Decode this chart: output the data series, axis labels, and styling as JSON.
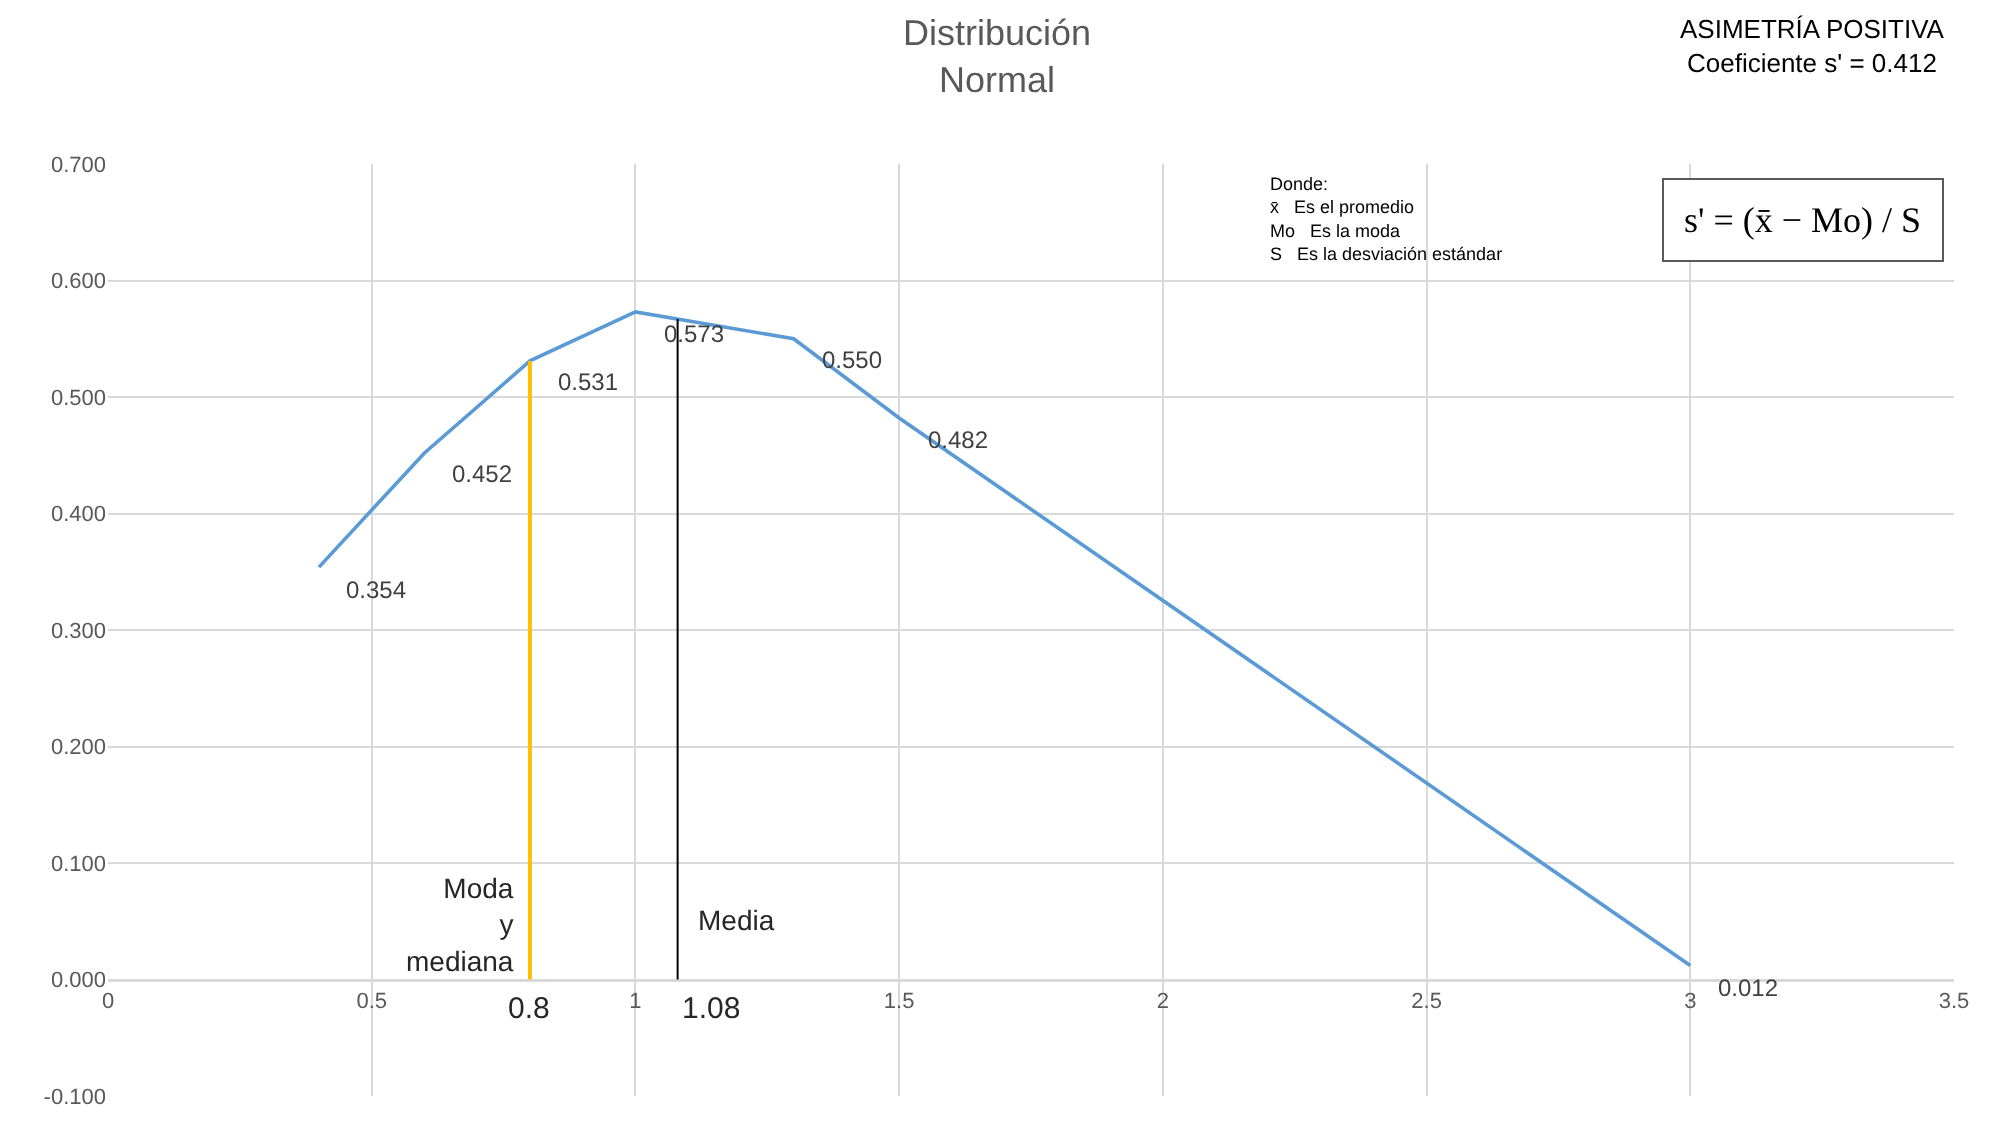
{
  "chart_data": {
    "type": "line",
    "title": "Distribución\nNormal",
    "x": [
      0.4,
      0.6,
      0.8,
      1.0,
      1.3,
      1.5,
      3.0
    ],
    "series": [
      {
        "color": "#5b9bd5",
        "values": [
          0.354,
          0.452,
          0.531,
          0.573,
          0.55,
          0.482,
          0.012
        ],
        "value_labels": [
          "0.354",
          "0.452",
          "0.531",
          "0.573",
          "0.550",
          "0.482",
          "0.012"
        ]
      }
    ],
    "xlim": [
      0,
      3.5
    ],
    "xticks": [
      0,
      0.5,
      1,
      1.5,
      2,
      2.5,
      3,
      3.5
    ],
    "ylim": [
      -0.1,
      0.7
    ],
    "yticks": [
      {
        "value": -0.1,
        "label": "-0.100"
      },
      {
        "value": 0,
        "label": "0.000"
      },
      {
        "value": 0.1,
        "label": "0.100"
      },
      {
        "value": 0.2,
        "label": "0.200"
      },
      {
        "value": 0.3,
        "label": "0.300"
      },
      {
        "value": 0.4,
        "label": "0.400"
      },
      {
        "value": 0.5,
        "label": "0.500"
      },
      {
        "value": 0.6,
        "label": "0.600"
      },
      {
        "value": 0.7,
        "label": "0.700"
      }
    ],
    "ref_lines": [
      {
        "axis": "x",
        "value": 0.8,
        "label": "Moda\ny\nmediana",
        "color": "#ffc000"
      },
      {
        "axis": "x",
        "value": 1.08,
        "label": "Media",
        "color": "#000000"
      }
    ],
    "annotations": [
      "0.8",
      "1.08",
      "ASIMETRÍA POSITIVA\nCoeficiente s' = 0.412",
      "Donde:\nx̄   Es el promedio\nMo   Es la moda\nS   Es la desviación estándar",
      "s' = (x̄ − Mo) / S"
    ],
    "grid": true,
    "marker": "none",
    "line_style": "solid"
  }
}
